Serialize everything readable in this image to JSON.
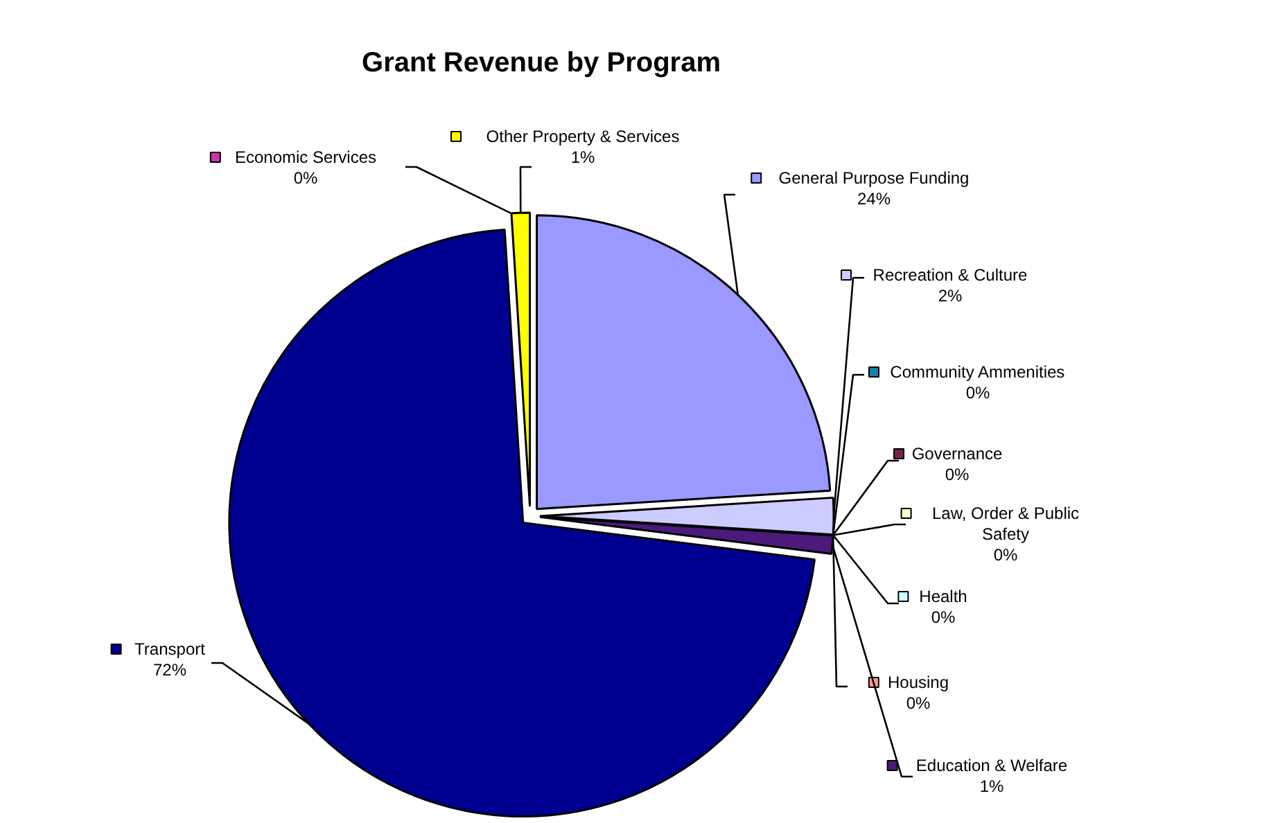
{
  "chart_data": {
    "type": "pie",
    "title": "Grant Revenue by Program",
    "categories": [
      "General Purpose Funding",
      "Recreation & Culture",
      "Community Ammenities",
      "Governance",
      "Law, Order & Public Safety",
      "Health",
      "Housing",
      "Education & Welfare",
      "Transport",
      "Economic Services",
      "Other Property & Services"
    ],
    "values": [
      24,
      2,
      0,
      0,
      0,
      0,
      0,
      1,
      72,
      0,
      1
    ],
    "value_labels": [
      "24%",
      "2%",
      "0%",
      "0%",
      "0%",
      "0%",
      "0%",
      "1%",
      "72%",
      "0%",
      "1%"
    ],
    "legend": "right",
    "colors": [
      "#9999ff",
      "#ccccff",
      "#1a7fa8",
      "#7a2050",
      "#ffffcc",
      "#ccffff",
      "#ff9999",
      "#4b1a7a",
      "#000090",
      "#cc33aa",
      "#ffff00"
    ]
  }
}
